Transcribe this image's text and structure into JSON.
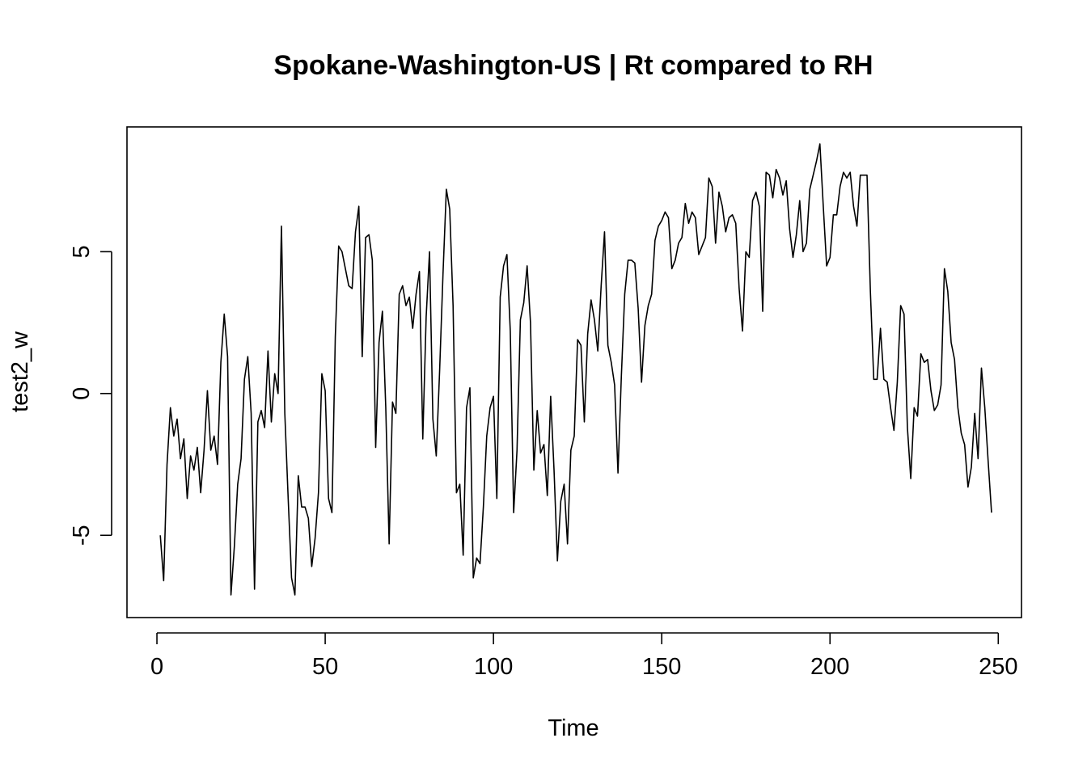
{
  "chart_data": {
    "type": "line",
    "title": "Spokane-Washington-US | Rt compared to RH",
    "xlabel": "Time",
    "ylabel": "test2_w",
    "xlim": [
      -8.9,
      256.9
    ],
    "ylim": [
      -7.9,
      9.4
    ],
    "x_ticks": [
      0,
      50,
      100,
      150,
      200,
      250
    ],
    "x_tick_labels": [
      "0",
      "50",
      "100",
      "150",
      "200",
      "250"
    ],
    "y_ticks": [
      -5,
      0,
      5
    ],
    "y_tick_labels": [
      "-5",
      "0",
      "5"
    ],
    "grid": false,
    "legend": "none",
    "series": [
      {
        "color": "#000000",
        "x": [
          1,
          2,
          3,
          4,
          5,
          6,
          7,
          8,
          9,
          10,
          11,
          12,
          13,
          14,
          15,
          16,
          17,
          18,
          19,
          20,
          21,
          22,
          23,
          24,
          25,
          26,
          27,
          28,
          29,
          30,
          31,
          32,
          33,
          34,
          35,
          36,
          37,
          38,
          39,
          40,
          41,
          42,
          43,
          44,
          45,
          46,
          47,
          48,
          49,
          50,
          51,
          52,
          53,
          54,
          55,
          56,
          57,
          58,
          59,
          60,
          61,
          62,
          63,
          64,
          65,
          66,
          67,
          68,
          69,
          70,
          71,
          72,
          73,
          74,
          75,
          76,
          77,
          78,
          79,
          80,
          81,
          82,
          83,
          84,
          85,
          86,
          87,
          88,
          89,
          90,
          91,
          92,
          93,
          94,
          95,
          96,
          97,
          98,
          99,
          100,
          101,
          102,
          103,
          104,
          105,
          106,
          107,
          108,
          109,
          110,
          111,
          112,
          113,
          114,
          115,
          116,
          117,
          118,
          119,
          120,
          121,
          122,
          123,
          124,
          125,
          126,
          127,
          128,
          129,
          130,
          131,
          132,
          133,
          134,
          135,
          136,
          137,
          138,
          139,
          140,
          141,
          142,
          143,
          144,
          145,
          146,
          147,
          148,
          149,
          150,
          151,
          152,
          153,
          154,
          155,
          156,
          157,
          158,
          159,
          160,
          161,
          162,
          163,
          164,
          165,
          166,
          167,
          168,
          169,
          170,
          171,
          172,
          173,
          174,
          175,
          176,
          177,
          178,
          179,
          180,
          181,
          182,
          183,
          184,
          185,
          186,
          187,
          188,
          189,
          190,
          191,
          192,
          193,
          194,
          195,
          196,
          197,
          198,
          199,
          200,
          201,
          202,
          203,
          204,
          205,
          206,
          207,
          208,
          209,
          210,
          211,
          212,
          213,
          214,
          215,
          216,
          217,
          218,
          219,
          220,
          221,
          222,
          223,
          224,
          225,
          226,
          227,
          228,
          229,
          230,
          231,
          232,
          233,
          234,
          235,
          236,
          237,
          238,
          239,
          240,
          241,
          242,
          243,
          244,
          245,
          246,
          247,
          248
        ],
        "y": [
          -5.0,
          -6.6,
          -2.5,
          -0.5,
          -1.5,
          -0.9,
          -2.3,
          -1.6,
          -3.7,
          -2.2,
          -2.7,
          -1.9,
          -3.5,
          -2.0,
          0.1,
          -2.0,
          -1.5,
          -2.5,
          1.1,
          2.8,
          1.3,
          -7.1,
          -5.4,
          -3.2,
          -2.3,
          0.5,
          1.3,
          -0.7,
          -6.9,
          -1.0,
          -0.6,
          -1.2,
          1.5,
          -1.0,
          0.7,
          0.0,
          5.9,
          -0.7,
          -3.7,
          -6.5,
          -7.1,
          -2.9,
          -4.0,
          -4.0,
          -4.4,
          -6.1,
          -5.1,
          -3.5,
          0.7,
          0.1,
          -3.7,
          -4.2,
          2.0,
          5.2,
          5.0,
          4.4,
          3.8,
          3.7,
          5.7,
          6.6,
          1.3,
          5.5,
          5.6,
          4.7,
          -1.9,
          1.8,
          2.9,
          -0.5,
          -5.3,
          -0.3,
          -0.7,
          3.5,
          3.8,
          3.1,
          3.4,
          2.3,
          3.5,
          4.3,
          -1.6,
          2.7,
          5.0,
          -0.9,
          -2.2,
          0.8,
          4.2,
          7.2,
          6.5,
          3.1,
          -3.5,
          -3.2,
          -5.7,
          -0.5,
          0.2,
          -6.5,
          -5.8,
          -6.0,
          -4.0,
          -1.5,
          -0.5,
          -0.1,
          -3.7,
          3.4,
          4.5,
          4.9,
          2.2,
          -4.2,
          -2.0,
          2.6,
          3.2,
          4.5,
          2.5,
          -2.7,
          -0.6,
          -2.1,
          -1.8,
          -3.6,
          -0.1,
          -2.7,
          -5.9,
          -3.8,
          -3.2,
          -5.3,
          -2.0,
          -1.5,
          1.9,
          1.7,
          -1.0,
          2.1,
          3.3,
          2.6,
          1.5,
          3.8,
          5.7,
          1.7,
          1.1,
          0.3,
          -2.8,
          0.6,
          3.5,
          4.7,
          4.7,
          4.6,
          3.0,
          0.4,
          2.4,
          3.1,
          3.5,
          5.4,
          5.9,
          6.1,
          6.4,
          6.2,
          4.4,
          4.7,
          5.3,
          5.5,
          6.7,
          6.0,
          6.4,
          6.2,
          4.9,
          5.2,
          5.5,
          7.6,
          7.3,
          5.3,
          7.1,
          6.6,
          5.7,
          6.2,
          6.3,
          6.0,
          3.7,
          2.2,
          5.0,
          4.8,
          6.8,
          7.1,
          6.6,
          2.9,
          7.8,
          7.7,
          6.9,
          7.9,
          7.6,
          7.0,
          7.5,
          5.8,
          4.8,
          5.6,
          6.8,
          5.0,
          5.3,
          7.2,
          7.7,
          8.2,
          8.8,
          6.6,
          4.5,
          4.8,
          6.3,
          6.3,
          7.3,
          7.8,
          7.6,
          7.8,
          6.6,
          5.9,
          7.7,
          7.7,
          7.7,
          3.6,
          0.5,
          0.5,
          2.3,
          0.5,
          0.4,
          -0.5,
          -1.3,
          0.4,
          3.1,
          2.8,
          -1.2,
          -3.0,
          -0.5,
          -0.8,
          1.4,
          1.1,
          1.2,
          0.1,
          -0.6,
          -0.4,
          0.3,
          4.4,
          3.6,
          1.8,
          1.2,
          -0.5,
          -1.4,
          -1.8,
          -3.3,
          -2.6,
          -0.7,
          -2.3,
          0.9,
          -0.5,
          -2.4,
          -4.2
        ]
      }
    ]
  }
}
